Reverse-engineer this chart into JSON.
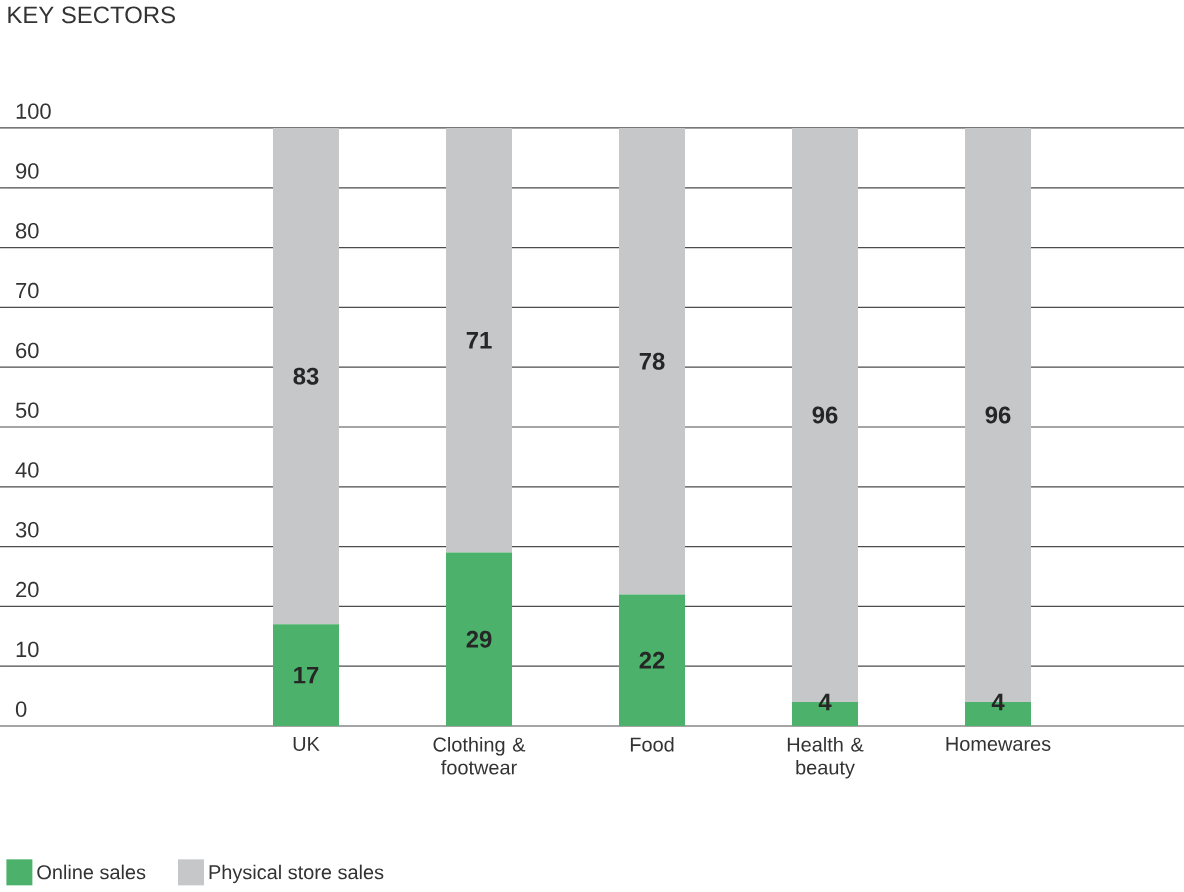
{
  "chart_data": {
    "type": "bar",
    "stacked": true,
    "title": "KEY SECTORS",
    "categories": [
      "UK",
      "Clothing & footwear",
      "Food",
      "Health & beauty",
      "Homewares"
    ],
    "series": [
      {
        "name": "Online sales",
        "color": "#4cb26b",
        "values": [
          17,
          29,
          22,
          4,
          4
        ]
      },
      {
        "name": "Physical store sales",
        "color": "#c6c7c9",
        "values": [
          83,
          71,
          78,
          96,
          96
        ]
      }
    ],
    "ylim": [
      0,
      100
    ],
    "yticks": [
      0,
      10,
      20,
      30,
      40,
      50,
      60,
      70,
      80,
      90,
      100
    ],
    "grid": "y",
    "legend": "bottom left",
    "data_labels": true
  }
}
